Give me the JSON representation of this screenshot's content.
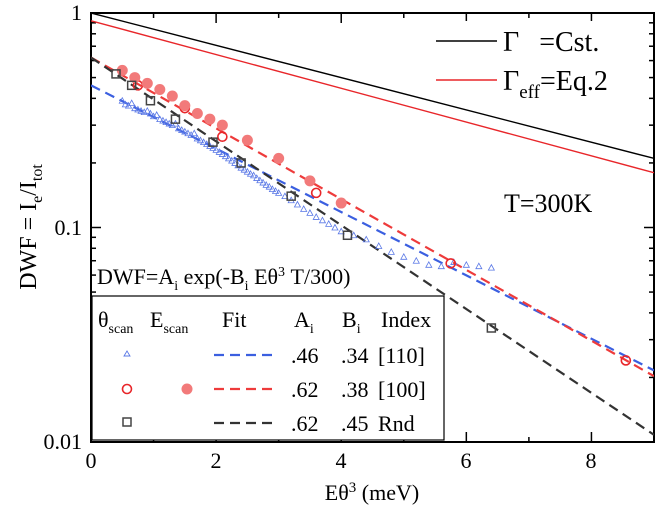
{
  "chart_data": {
    "type": "scatter",
    "xlabel_prefix": "Eθ",
    "xlabel_sup": "3",
    "xlabel_suffix": " (meV)",
    "ylabel": {
      "a": "DWF = I",
      "b": "e",
      "c": "/I",
      "d": "tot"
    },
    "xlim": [
      0,
      9
    ],
    "ylim": [
      0.01,
      1
    ],
    "yscale": "log",
    "x_ticks": [
      "0",
      "2",
      "4",
      "6",
      "8"
    ],
    "y_ticks": [
      "0.01",
      "0.1",
      "1"
    ],
    "annotation_temp": "T=300K",
    "legend_top": [
      {
        "symbol": "Γ",
        "sub": "",
        "text": "=Cst.",
        "color": "#000000"
      },
      {
        "symbol": "Γ",
        "sub": "eff",
        "text": "=Eq.2",
        "color": "#e8262a"
      }
    ],
    "formula": {
      "a": "DWF=A",
      "b": "i",
      "c": " exp(-B",
      "d": "i",
      "e": " Eθ",
      "f": "3",
      "g": " T/300)"
    },
    "legend_table": {
      "headers": {
        "theta": "θ",
        "theta_sub": "scan",
        "e": "E",
        "e_sub": "scan",
        "fit": "Fit",
        "a": "A",
        "a_sub": "i",
        "b": "B",
        "b_sub": "i",
        "index": "Index"
      },
      "rows": [
        {
          "A": ".46",
          "B": ".34",
          "index": "[110]",
          "color": "#3b5fe0"
        },
        {
          "A": ".62",
          "B": ".38",
          "index": "[100]",
          "color": "#ee3b3b"
        },
        {
          "A": ".62",
          "B": ".45",
          "index": "Rnd",
          "color": "#333333"
        }
      ]
    },
    "lines": [
      {
        "name": "Γ=Cst.",
        "style": "solid",
        "color": "#000000",
        "x": [
          0,
          9
        ],
        "y": [
          1.0,
          0.21
        ]
      },
      {
        "name": "Γeff=Eq.2",
        "style": "solid",
        "color": "#e8262a",
        "x": [
          0,
          9
        ],
        "y": [
          0.92,
          0.18
        ]
      },
      {
        "name": "fit [110]",
        "style": "dashed",
        "color": "#3b5fe0",
        "A": 0.46,
        "B": 0.34
      },
      {
        "name": "fit [100]",
        "style": "dashed",
        "color": "#ee3b3b",
        "A": 0.62,
        "B": 0.38
      },
      {
        "name": "fit Rnd",
        "style": "dashed",
        "color": "#333333",
        "A": 0.62,
        "B": 0.45
      }
    ],
    "series": [
      {
        "name": "[110] θscan",
        "marker": "triangle",
        "color": "#5a78e6",
        "points": [
          [
            0.5,
            0.39
          ],
          [
            0.55,
            0.375
          ],
          [
            0.6,
            0.37
          ],
          [
            0.65,
            0.38
          ],
          [
            0.7,
            0.36
          ],
          [
            0.75,
            0.355
          ],
          [
            0.8,
            0.35
          ],
          [
            0.85,
            0.345
          ],
          [
            0.9,
            0.35
          ],
          [
            0.95,
            0.34
          ],
          [
            1.0,
            0.33
          ],
          [
            1.05,
            0.335
          ],
          [
            1.1,
            0.32
          ],
          [
            1.15,
            0.315
          ],
          [
            1.2,
            0.31
          ],
          [
            1.25,
            0.305
          ],
          [
            1.3,
            0.3
          ],
          [
            1.35,
            0.305
          ],
          [
            1.4,
            0.29
          ],
          [
            1.45,
            0.285
          ],
          [
            1.5,
            0.28
          ],
          [
            1.55,
            0.275
          ],
          [
            1.6,
            0.27
          ],
          [
            1.65,
            0.275
          ],
          [
            1.7,
            0.26
          ],
          [
            1.75,
            0.255
          ],
          [
            1.8,
            0.25
          ],
          [
            1.85,
            0.245
          ],
          [
            1.9,
            0.24
          ],
          [
            1.95,
            0.235
          ],
          [
            2.0,
            0.23
          ],
          [
            2.05,
            0.225
          ],
          [
            2.1,
            0.22
          ],
          [
            2.15,
            0.215
          ],
          [
            2.2,
            0.21
          ],
          [
            2.25,
            0.205
          ],
          [
            2.3,
            0.2
          ],
          [
            2.35,
            0.195
          ],
          [
            2.4,
            0.19
          ],
          [
            2.45,
            0.186
          ],
          [
            2.5,
            0.182
          ],
          [
            2.55,
            0.178
          ],
          [
            2.6,
            0.175
          ],
          [
            2.65,
            0.17
          ],
          [
            2.7,
            0.166
          ],
          [
            2.75,
            0.162
          ],
          [
            2.8,
            0.158
          ],
          [
            2.85,
            0.155
          ],
          [
            2.9,
            0.151
          ],
          [
            2.95,
            0.148
          ],
          [
            3.0,
            0.145
          ],
          [
            3.1,
            0.14
          ],
          [
            3.2,
            0.134
          ],
          [
            3.3,
            0.128
          ],
          [
            3.4,
            0.122
          ],
          [
            3.5,
            0.117
          ],
          [
            3.6,
            0.112
          ],
          [
            3.7,
            0.108
          ],
          [
            3.8,
            0.104
          ],
          [
            3.9,
            0.1
          ],
          [
            4.0,
            0.096
          ],
          [
            4.2,
            0.092
          ],
          [
            4.4,
            0.088
          ],
          [
            4.6,
            0.082
          ],
          [
            4.8,
            0.077
          ],
          [
            5.0,
            0.073
          ],
          [
            5.2,
            0.07
          ],
          [
            5.4,
            0.067
          ],
          [
            5.6,
            0.066
          ],
          [
            5.8,
            0.069
          ],
          [
            6.0,
            0.067
          ],
          [
            6.2,
            0.066
          ],
          [
            6.4,
            0.065
          ]
        ]
      },
      {
        "name": "[100] θscan",
        "marker": "circle-open",
        "color": "#e8262a",
        "points": [
          [
            0.75,
            0.46
          ],
          [
            1.5,
            0.36
          ],
          [
            2.1,
            0.265
          ],
          [
            3.6,
            0.145
          ],
          [
            5.75,
            0.068
          ],
          [
            8.55,
            0.024
          ]
        ]
      },
      {
        "name": "[100] Escan",
        "marker": "circle-filled",
        "color": "#f27a7a",
        "points": [
          [
            0.5,
            0.54
          ],
          [
            0.7,
            0.5
          ],
          [
            0.9,
            0.47
          ],
          [
            1.1,
            0.44
          ],
          [
            1.3,
            0.41
          ],
          [
            1.5,
            0.37
          ],
          [
            1.7,
            0.34
          ],
          [
            1.9,
            0.32
          ],
          [
            2.1,
            0.3
          ],
          [
            2.5,
            0.255
          ],
          [
            3.0,
            0.21
          ],
          [
            3.5,
            0.165
          ],
          [
            4.0,
            0.13
          ]
        ]
      },
      {
        "name": "Rnd θscan",
        "marker": "square-open",
        "color": "#444444",
        "points": [
          [
            0.4,
            0.52
          ],
          [
            0.65,
            0.46
          ],
          [
            0.95,
            0.39
          ],
          [
            1.35,
            0.32
          ],
          [
            1.95,
            0.25
          ],
          [
            2.4,
            0.2
          ],
          [
            3.2,
            0.14
          ],
          [
            4.1,
            0.092
          ],
          [
            6.4,
            0.034
          ]
        ]
      }
    ]
  }
}
